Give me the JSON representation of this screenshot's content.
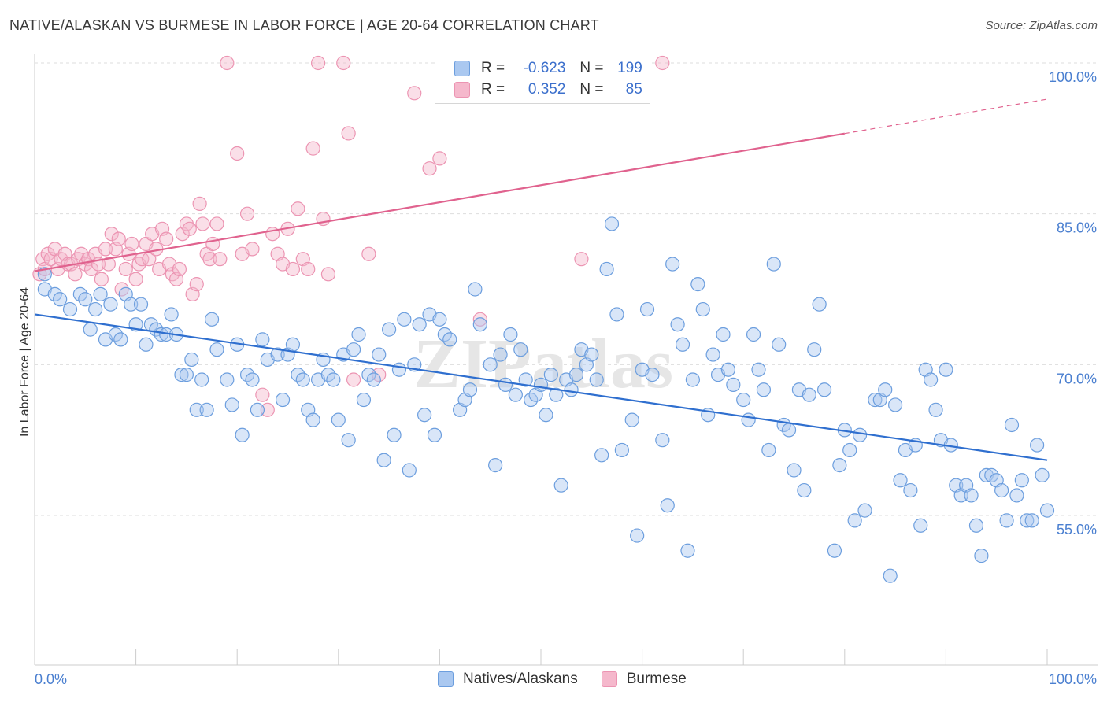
{
  "title": "NATIVE/ALASKAN VS BURMESE IN LABOR FORCE | AGE 20-64 CORRELATION CHART",
  "source": "Source: ZipAtlas.com",
  "watermark": "ZIPatlas",
  "legend": {
    "rows": [
      {
        "r_label": "R =",
        "r_value": "-0.623",
        "n_label": "N =",
        "n_value": "199"
      },
      {
        "r_label": "R =",
        "r_value": "0.352",
        "n_label": "N =",
        "n_value": "85"
      }
    ]
  },
  "bottom_legend": [
    "Natives/Alaskans",
    "Burmese"
  ],
  "colors": {
    "blue_fill": "#aac8f0",
    "blue_stroke": "#6c9ede",
    "blue_line": "#2f6fcf",
    "pink_fill": "#f5b8cc",
    "pink_stroke": "#ec94b2",
    "pink_line": "#e0628e",
    "tick_text": "#4a7fd0",
    "grid": "#dddddd"
  },
  "chart_data": {
    "type": "scatter",
    "title": "NATIVE/ALASKAN VS BURMESE IN LABOR FORCE | AGE 20-64 CORRELATION CHART",
    "xlabel": "",
    "ylabel": "In Labor Force | Age 20-64",
    "x_tick_labels": [
      "0.0%",
      "100.0%"
    ],
    "y_tick_labels": [
      "55.0%",
      "70.0%",
      "85.0%",
      "100.0%"
    ],
    "xlim": [
      0,
      100
    ],
    "ylim": [
      40,
      101
    ],
    "grid": true,
    "legend_position": "top-center",
    "series": [
      {
        "name": "Natives/Alaskans",
        "r": -0.623,
        "n": 199,
        "trend": {
          "x": [
            0,
            100
          ],
          "y": [
            75.0,
            60.5
          ],
          "solid_to": 100
        },
        "points": [
          [
            1,
            79
          ],
          [
            1,
            77.5
          ],
          [
            2,
            77
          ],
          [
            2.5,
            76.5
          ],
          [
            3.5,
            75.5
          ],
          [
            4.5,
            77
          ],
          [
            5,
            76.5
          ],
          [
            5.5,
            73.5
          ],
          [
            6,
            75.5
          ],
          [
            6.5,
            77
          ],
          [
            7,
            72.5
          ],
          [
            7.5,
            76
          ],
          [
            8,
            73
          ],
          [
            8.5,
            72.5
          ],
          [
            9,
            77
          ],
          [
            9.5,
            76
          ],
          [
            10,
            74
          ],
          [
            10.5,
            76
          ],
          [
            11,
            72
          ],
          [
            11.5,
            74
          ],
          [
            12,
            73.5
          ],
          [
            12.5,
            73
          ],
          [
            13,
            73
          ],
          [
            13.5,
            75
          ],
          [
            14,
            73
          ],
          [
            14.5,
            69
          ],
          [
            15,
            69
          ],
          [
            15.5,
            70.5
          ],
          [
            16,
            65.5
          ],
          [
            16.5,
            68.5
          ],
          [
            17,
            65.5
          ],
          [
            17.5,
            74.5
          ],
          [
            18,
            71.5
          ],
          [
            19,
            68.5
          ],
          [
            19.5,
            66
          ],
          [
            20,
            72
          ],
          [
            20.5,
            63
          ],
          [
            21,
            69
          ],
          [
            21.5,
            68.5
          ],
          [
            22,
            65.5
          ],
          [
            22.5,
            72.5
          ],
          [
            23,
            70.5
          ],
          [
            24,
            71
          ],
          [
            24.5,
            66.5
          ],
          [
            25,
            71
          ],
          [
            25.5,
            72
          ],
          [
            26,
            69
          ],
          [
            26.5,
            68.5
          ],
          [
            27,
            65.5
          ],
          [
            27.5,
            64.5
          ],
          [
            28,
            68.5
          ],
          [
            28.5,
            70.5
          ],
          [
            29,
            69
          ],
          [
            29.5,
            68.5
          ],
          [
            30,
            64.5
          ],
          [
            30.5,
            71
          ],
          [
            31,
            62.5
          ],
          [
            31.5,
            71.5
          ],
          [
            32,
            73
          ],
          [
            32.5,
            66.5
          ],
          [
            33,
            69
          ],
          [
            33.5,
            68.5
          ],
          [
            34,
            71
          ],
          [
            34.5,
            60.5
          ],
          [
            35,
            73.5
          ],
          [
            35.5,
            63
          ],
          [
            36,
            69.5
          ],
          [
            36.5,
            74.5
          ],
          [
            37,
            59.5
          ],
          [
            37.5,
            70
          ],
          [
            38,
            74
          ],
          [
            38.5,
            65
          ],
          [
            39,
            75
          ],
          [
            39.5,
            63
          ],
          [
            40,
            74.5
          ],
          [
            40.5,
            73
          ],
          [
            41,
            72.5
          ],
          [
            42,
            65.5
          ],
          [
            42.5,
            66.5
          ],
          [
            43,
            67.5
          ],
          [
            43.5,
            77.5
          ],
          [
            44,
            74
          ],
          [
            45,
            70
          ],
          [
            45.5,
            60
          ],
          [
            46,
            71
          ],
          [
            46.5,
            68
          ],
          [
            47,
            73
          ],
          [
            47.5,
            67
          ],
          [
            48,
            71.5
          ],
          [
            48.5,
            68.5
          ],
          [
            49,
            66.5
          ],
          [
            49.5,
            67
          ],
          [
            50,
            68
          ],
          [
            50.5,
            65
          ],
          [
            51,
            69
          ],
          [
            51.5,
            67
          ],
          [
            52,
            58
          ],
          [
            52.5,
            68.5
          ],
          [
            53,
            67.5
          ],
          [
            53.5,
            69
          ],
          [
            54,
            71.5
          ],
          [
            54.5,
            70
          ],
          [
            55,
            71
          ],
          [
            55.5,
            68.5
          ],
          [
            56,
            61
          ],
          [
            56.5,
            79.5
          ],
          [
            57,
            84
          ],
          [
            57.5,
            75
          ],
          [
            58,
            61.5
          ],
          [
            59,
            64.5
          ],
          [
            59.5,
            53
          ],
          [
            60,
            69.5
          ],
          [
            60.5,
            75.5
          ],
          [
            61,
            69
          ],
          [
            62,
            62.5
          ],
          [
            62.5,
            56
          ],
          [
            63,
            80
          ],
          [
            63.5,
            74
          ],
          [
            64,
            72
          ],
          [
            64.5,
            51.5
          ],
          [
            65,
            68.5
          ],
          [
            65.5,
            78
          ],
          [
            66,
            75.5
          ],
          [
            66.5,
            65
          ],
          [
            67,
            71
          ],
          [
            67.5,
            69
          ],
          [
            68,
            73
          ],
          [
            68.5,
            69.5
          ],
          [
            69,
            68
          ],
          [
            70,
            66.5
          ],
          [
            70.5,
            64.5
          ],
          [
            71,
            73
          ],
          [
            71.5,
            69.5
          ],
          [
            72,
            67.5
          ],
          [
            72.5,
            61.5
          ],
          [
            73,
            80
          ],
          [
            73.5,
            72
          ],
          [
            74,
            64
          ],
          [
            74.5,
            63.5
          ],
          [
            75,
            59.5
          ],
          [
            75.5,
            67.5
          ],
          [
            76,
            57.5
          ],
          [
            76.5,
            67
          ],
          [
            77,
            71.5
          ],
          [
            77.5,
            76
          ],
          [
            78,
            67.5
          ],
          [
            79,
            51.5
          ],
          [
            79.5,
            60
          ],
          [
            80,
            63.5
          ],
          [
            80.5,
            61.5
          ],
          [
            81,
            54.5
          ],
          [
            81.5,
            63
          ],
          [
            82,
            55.5
          ],
          [
            83,
            66.5
          ],
          [
            83.5,
            66.5
          ],
          [
            84,
            67.5
          ],
          [
            84.5,
            49
          ],
          [
            85,
            66
          ],
          [
            85.5,
            58.5
          ],
          [
            86,
            61.5
          ],
          [
            86.5,
            57.5
          ],
          [
            87,
            62
          ],
          [
            87.5,
            54
          ],
          [
            88,
            69.5
          ],
          [
            88.5,
            68.5
          ],
          [
            89,
            65.5
          ],
          [
            89.5,
            62.5
          ],
          [
            90,
            69.5
          ],
          [
            90.5,
            62
          ],
          [
            91,
            58
          ],
          [
            91.5,
            57
          ],
          [
            92,
            58
          ],
          [
            92.5,
            57
          ],
          [
            93,
            54
          ],
          [
            93.5,
            51
          ],
          [
            94,
            59
          ],
          [
            94.5,
            59
          ],
          [
            95,
            58.5
          ],
          [
            95.5,
            57.5
          ],
          [
            96,
            54.5
          ],
          [
            96.5,
            64
          ],
          [
            97,
            57
          ],
          [
            97.5,
            58.5
          ],
          [
            98,
            54.5
          ],
          [
            98.5,
            54.5
          ],
          [
            99,
            62
          ],
          [
            99.5,
            59
          ],
          [
            100,
            55.5
          ]
        ]
      },
      {
        "name": "Burmese",
        "r": 0.352,
        "n": 85,
        "trend": {
          "x": [
            0,
            100
          ],
          "y": [
            79.3,
            96.4
          ],
          "solid_to": 80
        },
        "points": [
          [
            0.5,
            79
          ],
          [
            0.8,
            80.5
          ],
          [
            1,
            79.5
          ],
          [
            1.3,
            81
          ],
          [
            1.6,
            80.5
          ],
          [
            2,
            81.5
          ],
          [
            2.3,
            79.5
          ],
          [
            2.6,
            80.5
          ],
          [
            3,
            81
          ],
          [
            3.3,
            80
          ],
          [
            3.6,
            80
          ],
          [
            4,
            79
          ],
          [
            4.3,
            80.5
          ],
          [
            4.6,
            81
          ],
          [
            5,
            80
          ],
          [
            5.3,
            80.5
          ],
          [
            5.6,
            79.5
          ],
          [
            6,
            81
          ],
          [
            6.3,
            80
          ],
          [
            6.6,
            78.5
          ],
          [
            7,
            81.5
          ],
          [
            7.3,
            80
          ],
          [
            7.6,
            83
          ],
          [
            8,
            81.5
          ],
          [
            8.3,
            82.5
          ],
          [
            8.6,
            77.5
          ],
          [
            9,
            79.5
          ],
          [
            9.3,
            81
          ],
          [
            9.6,
            82
          ],
          [
            10,
            78.5
          ],
          [
            10.3,
            80
          ],
          [
            10.6,
            80.5
          ],
          [
            11,
            82
          ],
          [
            11.3,
            80.5
          ],
          [
            11.6,
            83
          ],
          [
            12,
            81.5
          ],
          [
            12.3,
            79.5
          ],
          [
            12.6,
            83.5
          ],
          [
            13,
            82.5
          ],
          [
            13.3,
            80
          ],
          [
            13.6,
            79
          ],
          [
            14,
            78.5
          ],
          [
            14.3,
            79.5
          ],
          [
            14.6,
            83
          ],
          [
            15,
            84
          ],
          [
            15.3,
            83.5
          ],
          [
            15.6,
            77
          ],
          [
            16,
            78
          ],
          [
            16.3,
            86
          ],
          [
            16.6,
            84
          ],
          [
            17,
            81
          ],
          [
            17.3,
            80.5
          ],
          [
            17.6,
            82
          ],
          [
            18,
            84
          ],
          [
            18.3,
            80.5
          ],
          [
            19,
            100
          ],
          [
            20,
            91
          ],
          [
            20.5,
            81
          ],
          [
            21,
            85
          ],
          [
            21.5,
            81.5
          ],
          [
            22.5,
            67
          ],
          [
            23,
            65.5
          ],
          [
            23.5,
            83
          ],
          [
            24,
            81
          ],
          [
            24.5,
            80
          ],
          [
            25,
            83.5
          ],
          [
            25.5,
            79.5
          ],
          [
            26,
            85.5
          ],
          [
            26.5,
            80.5
          ],
          [
            27,
            79.5
          ],
          [
            27.5,
            91.5
          ],
          [
            28,
            100
          ],
          [
            28.5,
            84.5
          ],
          [
            29,
            79
          ],
          [
            30.5,
            100
          ],
          [
            31,
            93
          ],
          [
            31.5,
            68.5
          ],
          [
            33,
            81
          ],
          [
            37.5,
            97
          ],
          [
            39,
            89.5
          ],
          [
            40,
            90.5
          ],
          [
            44,
            74.5
          ],
          [
            54,
            80.5
          ],
          [
            62,
            100
          ],
          [
            34,
            69
          ]
        ]
      }
    ]
  }
}
